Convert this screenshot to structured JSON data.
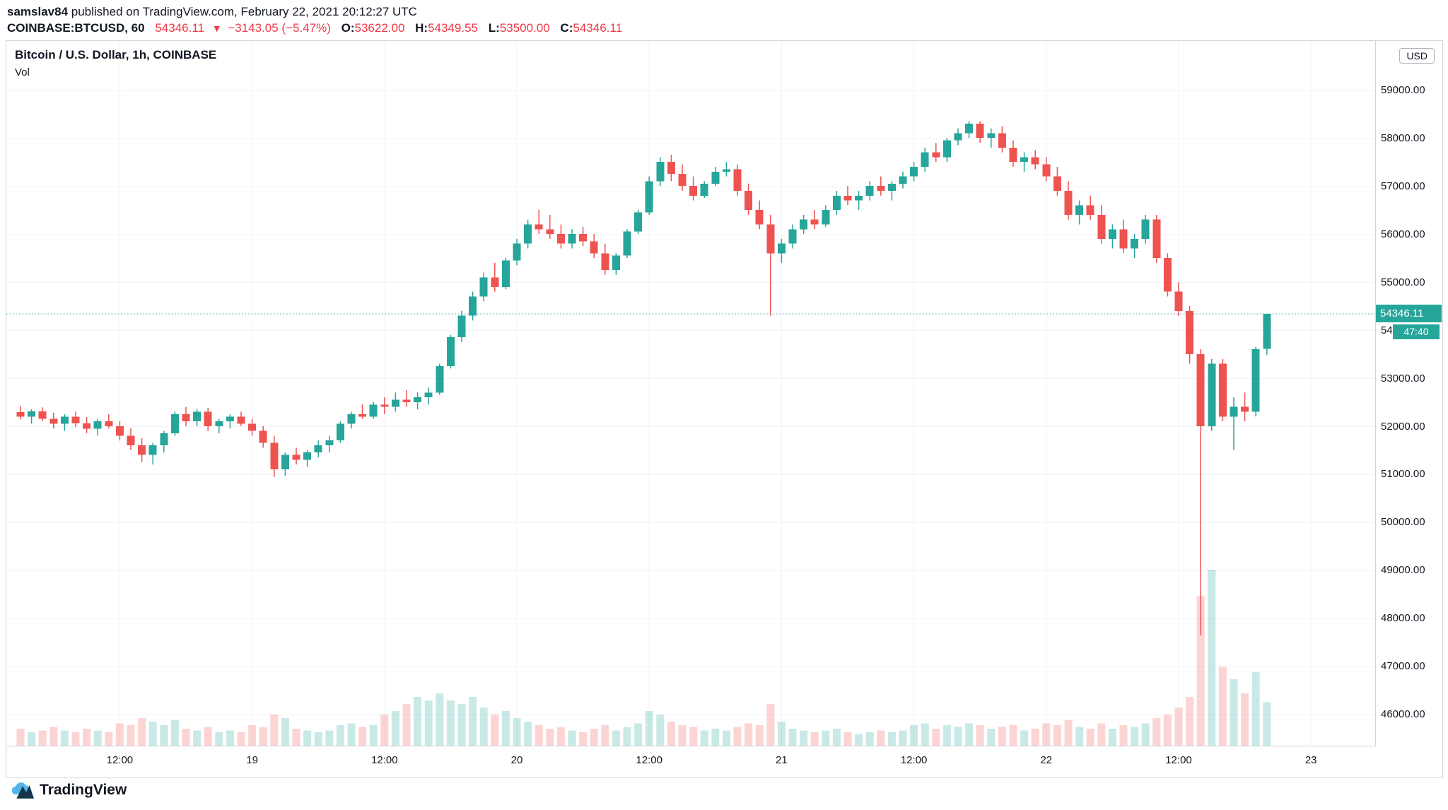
{
  "header": {
    "byline_user": "samslav84",
    "byline_rest": " published on TradingView.com, February 22, 2021 20:12:27 UTC",
    "symbol": "COINBASE:BTCUSD, 60",
    "last": "54346.11",
    "arrow": "▼",
    "change": "−3143.05 (−5.47%)",
    "o_label": "O:",
    "o": "53622.00",
    "h_label": "H:",
    "h": "54349.55",
    "l_label": "L:",
    "l": "53500.00",
    "c_label": "C:",
    "c": "54346.11"
  },
  "chart": {
    "legend_title": "Bitcoin / U.S. Dollar, 1h, COINBASE",
    "legend_vol": "Vol",
    "currency_button": "USD",
    "price_label": "54346.11",
    "countdown": "47:40",
    "colors": {
      "up": "#26a69a",
      "down": "#ef5350",
      "vol_up": "rgba(38,166,154,0.25)",
      "vol_down": "rgba(239,83,80,0.25)",
      "accent": "#26a69a",
      "red": "#f23645",
      "grid": "#f0f3fa"
    }
  },
  "footer": {
    "brand": "TradingView"
  },
  "chart_data": {
    "type": "candlestick",
    "title": "Bitcoin / U.S. Dollar, 1h, COINBASE",
    "exchange": "COINBASE",
    "interval": "60",
    "currency": "USD",
    "last_price": 54346.11,
    "price_range": [
      45340,
      60030
    ],
    "y_ticks": [
      59000,
      58000,
      57000,
      56000,
      55000,
      54000,
      53000,
      52000,
      51000,
      50000,
      49000,
      48000,
      47000,
      46000
    ],
    "x_ticks": [
      {
        "i": 9,
        "label": "12:00"
      },
      {
        "i": 21,
        "label": "19"
      },
      {
        "i": 33,
        "label": "12:00"
      },
      {
        "i": 45,
        "label": "20"
      },
      {
        "i": 57,
        "label": "12:00"
      },
      {
        "i": 69,
        "label": "21"
      },
      {
        "i": 81,
        "label": "12:00"
      },
      {
        "i": 93,
        "label": "22"
      },
      {
        "i": 105,
        "label": "12:00"
      },
      {
        "i": 117,
        "label": "23"
      }
    ],
    "candles": [
      [
        52300,
        52430,
        52150,
        52210
      ],
      [
        52210,
        52360,
        52060,
        52320
      ],
      [
        52320,
        52400,
        52110,
        52160
      ],
      [
        52160,
        52290,
        51960,
        52060
      ],
      [
        52060,
        52260,
        51910,
        52210
      ],
      [
        52210,
        52310,
        51990,
        52070
      ],
      [
        52070,
        52200,
        51860,
        51960
      ],
      [
        51960,
        52160,
        51810,
        52110
      ],
      [
        52110,
        52260,
        51960,
        52010
      ],
      [
        52010,
        52110,
        51710,
        51810
      ],
      [
        51810,
        51960,
        51510,
        51610
      ],
      [
        51610,
        51760,
        51260,
        51410
      ],
      [
        51410,
        51660,
        51210,
        51610
      ],
      [
        51610,
        51910,
        51460,
        51860
      ],
      [
        51860,
        52310,
        51810,
        52260
      ],
      [
        52260,
        52410,
        52010,
        52110
      ],
      [
        52110,
        52360,
        52010,
        52310
      ],
      [
        52310,
        52390,
        51910,
        52010
      ],
      [
        52010,
        52160,
        51860,
        52110
      ],
      [
        52110,
        52260,
        51960,
        52210
      ],
      [
        52210,
        52310,
        52010,
        52060
      ],
      [
        52060,
        52160,
        51810,
        51910
      ],
      [
        51910,
        52010,
        51560,
        51660
      ],
      [
        51660,
        51810,
        50950,
        51110
      ],
      [
        51110,
        51460,
        50980,
        51410
      ],
      [
        51410,
        51560,
        51210,
        51310
      ],
      [
        51310,
        51510,
        51160,
        51460
      ],
      [
        51460,
        51710,
        51360,
        51610
      ],
      [
        51610,
        51810,
        51460,
        51710
      ],
      [
        51710,
        52110,
        51660,
        52060
      ],
      [
        52060,
        52310,
        51960,
        52260
      ],
      [
        52260,
        52460,
        52160,
        52210
      ],
      [
        52210,
        52510,
        52160,
        52460
      ],
      [
        52460,
        52610,
        52260,
        52410
      ],
      [
        52410,
        52710,
        52310,
        52560
      ],
      [
        52560,
        52760,
        52410,
        52510
      ],
      [
        52510,
        52710,
        52360,
        52610
      ],
      [
        52610,
        52810,
        52460,
        52710
      ],
      [
        52710,
        53310,
        52660,
        53260
      ],
      [
        53260,
        53910,
        53210,
        53860
      ],
      [
        53860,
        54410,
        53760,
        54310
      ],
      [
        54310,
        54810,
        54210,
        54710
      ],
      [
        54710,
        55210,
        54610,
        55110
      ],
      [
        55110,
        55410,
        54810,
        54910
      ],
      [
        54910,
        55510,
        54860,
        55460
      ],
      [
        55460,
        55910,
        55360,
        55810
      ],
      [
        55810,
        56310,
        55710,
        56210
      ],
      [
        56210,
        56510,
        56010,
        56110
      ],
      [
        56110,
        56410,
        55910,
        56010
      ],
      [
        56010,
        56210,
        55710,
        55810
      ],
      [
        55810,
        56110,
        55710,
        56010
      ],
      [
        56010,
        56160,
        55760,
        55860
      ],
      [
        55860,
        56010,
        55510,
        55610
      ],
      [
        55610,
        55810,
        55160,
        55260
      ],
      [
        55260,
        55610,
        55160,
        55560
      ],
      [
        55560,
        56110,
        55510,
        56060
      ],
      [
        56060,
        56510,
        56010,
        56460
      ],
      [
        56460,
        57210,
        56410,
        57110
      ],
      [
        57110,
        57610,
        57010,
        57510
      ],
      [
        57510,
        57660,
        57110,
        57260
      ],
      [
        57260,
        57460,
        56910,
        57010
      ],
      [
        57010,
        57210,
        56710,
        56810
      ],
      [
        56810,
        57110,
        56760,
        57060
      ],
      [
        57060,
        57410,
        57010,
        57310
      ],
      [
        57310,
        57510,
        57210,
        57360
      ],
      [
        57360,
        57460,
        56810,
        56910
      ],
      [
        56910,
        57060,
        56410,
        56510
      ],
      [
        56510,
        56710,
        56110,
        56210
      ],
      [
        56210,
        56410,
        54310,
        55610
      ],
      [
        55610,
        55910,
        55410,
        55810
      ],
      [
        55810,
        56210,
        55710,
        56110
      ],
      [
        56110,
        56410,
        56010,
        56310
      ],
      [
        56310,
        56510,
        56110,
        56210
      ],
      [
        56210,
        56610,
        56160,
        56510
      ],
      [
        56510,
        56910,
        56410,
        56810
      ],
      [
        56810,
        57010,
        56610,
        56710
      ],
      [
        56710,
        56910,
        56510,
        56810
      ],
      [
        56810,
        57110,
        56710,
        57010
      ],
      [
        57010,
        57210,
        56810,
        56910
      ],
      [
        56910,
        57110,
        56710,
        57060
      ],
      [
        57060,
        57310,
        56960,
        57210
      ],
      [
        57210,
        57510,
        57110,
        57410
      ],
      [
        57410,
        57810,
        57310,
        57710
      ],
      [
        57710,
        57910,
        57510,
        57610
      ],
      [
        57610,
        58010,
        57510,
        57960
      ],
      [
        57960,
        58210,
        57860,
        58110
      ],
      [
        58110,
        58360,
        58010,
        58310
      ],
      [
        58310,
        58360,
        57910,
        58010
      ],
      [
        58010,
        58210,
        57810,
        58110
      ],
      [
        58110,
        58260,
        57710,
        57810
      ],
      [
        57810,
        57960,
        57410,
        57510
      ],
      [
        57510,
        57710,
        57310,
        57610
      ],
      [
        57610,
        57760,
        57360,
        57460
      ],
      [
        57460,
        57610,
        57110,
        57210
      ],
      [
        57210,
        57410,
        56810,
        56910
      ],
      [
        56910,
        57110,
        56310,
        56410
      ],
      [
        56410,
        56710,
        56210,
        56610
      ],
      [
        56610,
        56810,
        56310,
        56410
      ],
      [
        56410,
        56610,
        55810,
        55910
      ],
      [
        55910,
        56210,
        55710,
        56110
      ],
      [
        56110,
        56310,
        55610,
        55710
      ],
      [
        55710,
        56010,
        55510,
        55910
      ],
      [
        55910,
        56410,
        55810,
        56310
      ],
      [
        56310,
        56410,
        55410,
        55510
      ],
      [
        55510,
        55610,
        54710,
        54810
      ],
      [
        54810,
        55010,
        54310,
        54410
      ],
      [
        54410,
        54510,
        53310,
        53510
      ],
      [
        53510,
        53610,
        47650,
        52010
      ],
      [
        52010,
        53410,
        51910,
        53310
      ],
      [
        53310,
        53410,
        52110,
        52210
      ],
      [
        52210,
        52610,
        51510,
        52410
      ],
      [
        52410,
        52710,
        52110,
        52310
      ],
      [
        52310,
        53660,
        52210,
        53610
      ],
      [
        53622,
        54349.55,
        53500,
        54346.11
      ]
    ],
    "volumes": [
      0.1,
      0.08,
      0.09,
      0.11,
      0.09,
      0.08,
      0.1,
      0.09,
      0.08,
      0.13,
      0.12,
      0.16,
      0.14,
      0.12,
      0.15,
      0.1,
      0.09,
      0.11,
      0.08,
      0.09,
      0.08,
      0.12,
      0.11,
      0.18,
      0.16,
      0.1,
      0.09,
      0.08,
      0.09,
      0.12,
      0.13,
      0.11,
      0.12,
      0.18,
      0.2,
      0.24,
      0.28,
      0.26,
      0.3,
      0.26,
      0.24,
      0.28,
      0.22,
      0.18,
      0.2,
      0.16,
      0.14,
      0.12,
      0.1,
      0.11,
      0.09,
      0.08,
      0.1,
      0.12,
      0.09,
      0.11,
      0.13,
      0.2,
      0.18,
      0.14,
      0.12,
      0.11,
      0.09,
      0.1,
      0.09,
      0.11,
      0.13,
      0.12,
      0.24,
      0.14,
      0.1,
      0.09,
      0.08,
      0.09,
      0.1,
      0.08,
      0.07,
      0.08,
      0.09,
      0.08,
      0.09,
      0.12,
      0.13,
      0.1,
      0.12,
      0.11,
      0.13,
      0.12,
      0.1,
      0.11,
      0.12,
      0.09,
      0.1,
      0.13,
      0.12,
      0.15,
      0.11,
      0.1,
      0.13,
      0.1,
      0.12,
      0.11,
      0.13,
      0.16,
      0.18,
      0.22,
      0.28,
      0.85,
      1.0,
      0.45,
      0.38,
      0.3,
      0.42,
      0.25
    ]
  }
}
